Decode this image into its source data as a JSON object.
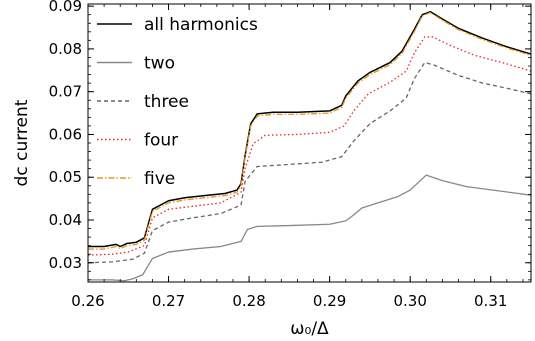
{
  "chart_data": {
    "type": "line",
    "xlabel": "ω₀/Δ",
    "ylabel": "dc current",
    "xlim": [
      0.26,
      0.315
    ],
    "ylim": [
      0.0255,
      0.0905
    ],
    "xticks": [
      "0.26",
      "0.27",
      "0.28",
      "0.29",
      "0.30",
      "0.31"
    ],
    "yticks": [
      "0.03",
      "0.04",
      "0.05",
      "0.06",
      "0.07",
      "0.08",
      "0.09"
    ],
    "legend_position": "top-left",
    "grid": false,
    "series": [
      {
        "name": "all harmonics",
        "color": "#000000",
        "dash": "solid",
        "points": [
          [
            0.26,
            0.0338
          ],
          [
            0.262,
            0.0338
          ],
          [
            0.2635,
            0.0343
          ],
          [
            0.264,
            0.0338
          ],
          [
            0.2648,
            0.0345
          ],
          [
            0.266,
            0.0348
          ],
          [
            0.267,
            0.0358
          ],
          [
            0.268,
            0.0425
          ],
          [
            0.27,
            0.0445
          ],
          [
            0.272,
            0.0452
          ],
          [
            0.275,
            0.0458
          ],
          [
            0.277,
            0.0462
          ],
          [
            0.2785,
            0.047
          ],
          [
            0.279,
            0.0485
          ],
          [
            0.2795,
            0.055
          ],
          [
            0.2802,
            0.0625
          ],
          [
            0.281,
            0.0648
          ],
          [
            0.283,
            0.0652
          ],
          [
            0.286,
            0.0652
          ],
          [
            0.29,
            0.0655
          ],
          [
            0.2915,
            0.0668
          ],
          [
            0.292,
            0.069
          ],
          [
            0.2935,
            0.0725
          ],
          [
            0.295,
            0.0745
          ],
          [
            0.2975,
            0.0768
          ],
          [
            0.299,
            0.0795
          ],
          [
            0.3005,
            0.0845
          ],
          [
            0.3015,
            0.088
          ],
          [
            0.3025,
            0.0887
          ],
          [
            0.304,
            0.087
          ],
          [
            0.306,
            0.0848
          ],
          [
            0.309,
            0.0825
          ],
          [
            0.312,
            0.0805
          ],
          [
            0.315,
            0.0788
          ]
        ]
      },
      {
        "name": "two",
        "color": "#888888",
        "dash": "solid",
        "points": [
          [
            0.26,
            0.026
          ],
          [
            0.263,
            0.026
          ],
          [
            0.2645,
            0.0258
          ],
          [
            0.2655,
            0.0262
          ],
          [
            0.2668,
            0.0272
          ],
          [
            0.268,
            0.031
          ],
          [
            0.27,
            0.0325
          ],
          [
            0.273,
            0.0332
          ],
          [
            0.2765,
            0.0338
          ],
          [
            0.279,
            0.035
          ],
          [
            0.2798,
            0.0378
          ],
          [
            0.281,
            0.0385
          ],
          [
            0.285,
            0.0387
          ],
          [
            0.29,
            0.039
          ],
          [
            0.292,
            0.0398
          ],
          [
            0.293,
            0.0412
          ],
          [
            0.294,
            0.0428
          ],
          [
            0.296,
            0.044
          ],
          [
            0.2985,
            0.0455
          ],
          [
            0.3,
            0.047
          ],
          [
            0.302,
            0.0505
          ],
          [
            0.304,
            0.0492
          ],
          [
            0.307,
            0.0478
          ],
          [
            0.311,
            0.0468
          ],
          [
            0.315,
            0.0458
          ]
        ]
      },
      {
        "name": "three",
        "color": "#666666",
        "dash": "4,3",
        "points": [
          [
            0.26,
            0.03
          ],
          [
            0.263,
            0.0302
          ],
          [
            0.2655,
            0.0308
          ],
          [
            0.267,
            0.0322
          ],
          [
            0.268,
            0.0375
          ],
          [
            0.27,
            0.0395
          ],
          [
            0.273,
            0.0405
          ],
          [
            0.2765,
            0.0415
          ],
          [
            0.279,
            0.0435
          ],
          [
            0.2795,
            0.049
          ],
          [
            0.281,
            0.0525
          ],
          [
            0.285,
            0.053
          ],
          [
            0.289,
            0.0535
          ],
          [
            0.2915,
            0.0548
          ],
          [
            0.293,
            0.0585
          ],
          [
            0.295,
            0.0625
          ],
          [
            0.2975,
            0.0655
          ],
          [
            0.2995,
            0.0685
          ],
          [
            0.3005,
            0.073
          ],
          [
            0.3018,
            0.0768
          ],
          [
            0.303,
            0.0762
          ],
          [
            0.306,
            0.0738
          ],
          [
            0.309,
            0.072
          ],
          [
            0.312,
            0.0708
          ],
          [
            0.315,
            0.0695
          ]
        ]
      },
      {
        "name": "four",
        "color": "#e8242a",
        "dash": "1.5,2.5",
        "points": [
          [
            0.26,
            0.0318
          ],
          [
            0.263,
            0.032
          ],
          [
            0.265,
            0.0325
          ],
          [
            0.267,
            0.034
          ],
          [
            0.268,
            0.0405
          ],
          [
            0.27,
            0.0425
          ],
          [
            0.273,
            0.0432
          ],
          [
            0.2765,
            0.044
          ],
          [
            0.279,
            0.0465
          ],
          [
            0.2795,
            0.052
          ],
          [
            0.2805,
            0.0578
          ],
          [
            0.282,
            0.0598
          ],
          [
            0.286,
            0.06
          ],
          [
            0.29,
            0.0605
          ],
          [
            0.2918,
            0.062
          ],
          [
            0.293,
            0.0655
          ],
          [
            0.2948,
            0.0695
          ],
          [
            0.2975,
            0.0722
          ],
          [
            0.2995,
            0.0748
          ],
          [
            0.3005,
            0.079
          ],
          [
            0.3018,
            0.0828
          ],
          [
            0.3028,
            0.0828
          ],
          [
            0.305,
            0.0808
          ],
          [
            0.308,
            0.0785
          ],
          [
            0.312,
            0.0765
          ],
          [
            0.315,
            0.0748
          ]
        ]
      },
      {
        "name": "five",
        "color": "#e8961c",
        "dash": "6,2,1.5,2",
        "points": [
          [
            0.26,
            0.0332
          ],
          [
            0.262,
            0.0332
          ],
          [
            0.2635,
            0.0338
          ],
          [
            0.264,
            0.0333
          ],
          [
            0.2648,
            0.034
          ],
          [
            0.266,
            0.0343
          ],
          [
            0.267,
            0.0353
          ],
          [
            0.268,
            0.042
          ],
          [
            0.27,
            0.044
          ],
          [
            0.272,
            0.0447
          ],
          [
            0.275,
            0.0453
          ],
          [
            0.277,
            0.0457
          ],
          [
            0.2785,
            0.0465
          ],
          [
            0.279,
            0.048
          ],
          [
            0.2795,
            0.0545
          ],
          [
            0.2802,
            0.062
          ],
          [
            0.281,
            0.0643
          ],
          [
            0.283,
            0.0647
          ],
          [
            0.286,
            0.0647
          ],
          [
            0.29,
            0.065
          ],
          [
            0.2915,
            0.0663
          ],
          [
            0.292,
            0.0685
          ],
          [
            0.2935,
            0.072
          ],
          [
            0.295,
            0.074
          ],
          [
            0.2975,
            0.0763
          ],
          [
            0.299,
            0.079
          ],
          [
            0.3005,
            0.084
          ],
          [
            0.3015,
            0.0877
          ],
          [
            0.3025,
            0.0885
          ],
          [
            0.304,
            0.0867
          ],
          [
            0.306,
            0.0845
          ],
          [
            0.309,
            0.0822
          ],
          [
            0.312,
            0.0802
          ],
          [
            0.315,
            0.0785
          ]
        ]
      }
    ]
  }
}
